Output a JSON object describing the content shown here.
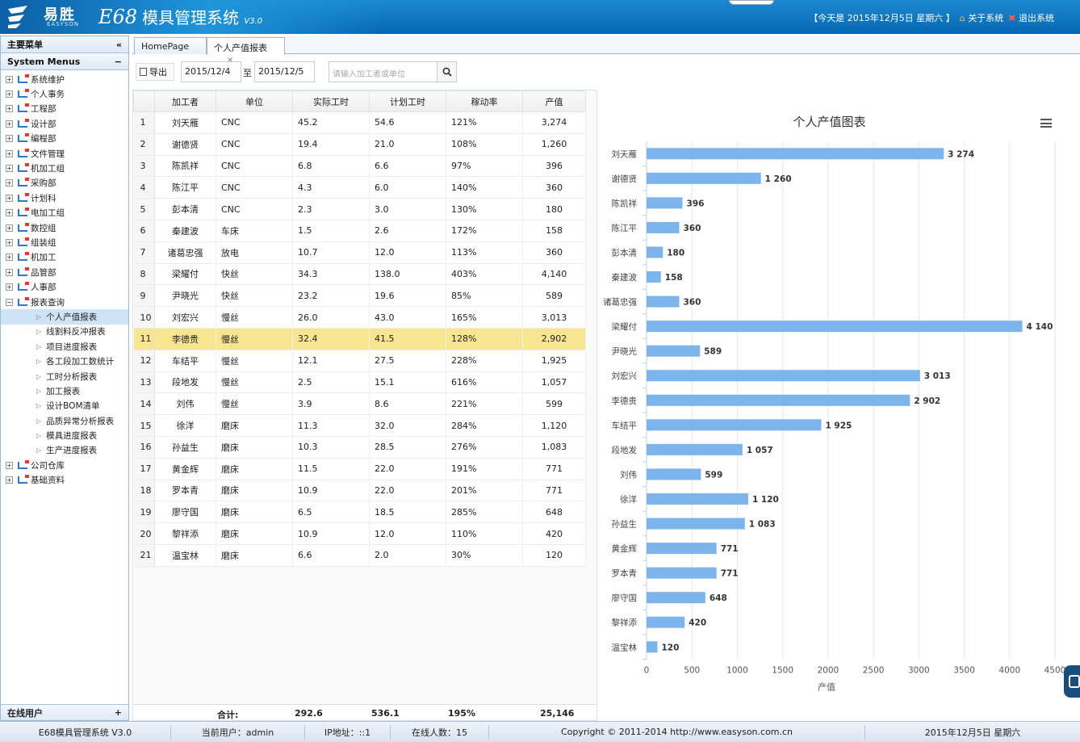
{
  "header": {
    "logo_name": "易胜",
    "logo_sub": "EASYSON",
    "app_code": "E68",
    "app_name": "模具管理系统",
    "app_version": "V3.0",
    "today": "【今天是 2015年12月5日 星期六 】",
    "about": "关于系统",
    "logout": "退出系统"
  },
  "sidebar": {
    "title": "主要菜单",
    "collapse": "«",
    "section": "System Menus",
    "section_toggle": "−",
    "items": [
      {
        "label": "系统维护"
      },
      {
        "label": "个人事务"
      },
      {
        "label": "工程部"
      },
      {
        "label": "设计部"
      },
      {
        "label": "编程部"
      },
      {
        "label": "文件管理"
      },
      {
        "label": "机加工组"
      },
      {
        "label": "采购部"
      },
      {
        "label": "计划科"
      },
      {
        "label": "电加工组"
      },
      {
        "label": "数控组"
      },
      {
        "label": "组装组"
      },
      {
        "label": "机加工"
      },
      {
        "label": "品管部"
      },
      {
        "label": "人事部"
      },
      {
        "label": "报表查询"
      }
    ],
    "report_children": [
      {
        "label": "个人产值报表"
      },
      {
        "label": "线割料反冲报表"
      },
      {
        "label": "项目进度报表"
      },
      {
        "label": "各工段加工数统计"
      },
      {
        "label": "工时分析报表"
      },
      {
        "label": "加工报表"
      },
      {
        "label": "设计BOM清单"
      },
      {
        "label": "品质异常分析报表"
      },
      {
        "label": "模具进度报表"
      },
      {
        "label": "生产进度报表"
      }
    ],
    "tail_items": [
      {
        "label": "公司仓库"
      },
      {
        "label": "基础资料"
      }
    ],
    "online_title": "在线用户",
    "online_toggle": "+"
  },
  "tabs": [
    {
      "label": "HomePage"
    },
    {
      "label": "个人产值报表",
      "close": "×"
    }
  ],
  "toolbar": {
    "export": "导出",
    "date_from": "2015/12/4",
    "to": "至",
    "date_to": "2015/12/5",
    "search_placeholder": "请输入加工者或单位"
  },
  "table": {
    "headers": [
      "加工者",
      "单位",
      "实际工时",
      "计划工时",
      "稼动率",
      "产值"
    ],
    "rows": [
      [
        "1",
        "刘天雁",
        "CNC",
        "45.2",
        "54.6",
        "121%",
        "3,274"
      ],
      [
        "2",
        "谢德贤",
        "CNC",
        "19.4",
        "21.0",
        "108%",
        "1,260"
      ],
      [
        "3",
        "陈凯祥",
        "CNC",
        "6.8",
        "6.6",
        "97%",
        "396"
      ],
      [
        "4",
        "陈江平",
        "CNC",
        "4.3",
        "6.0",
        "140%",
        "360"
      ],
      [
        "5",
        "彭本清",
        "CNC",
        "2.3",
        "3.0",
        "130%",
        "180"
      ],
      [
        "6",
        "秦建波",
        "车床",
        "1.5",
        "2.6",
        "172%",
        "158"
      ],
      [
        "7",
        "诸葛忠强",
        "放电",
        "10.7",
        "12.0",
        "113%",
        "360"
      ],
      [
        "8",
        "梁耀付",
        "快丝",
        "34.3",
        "138.0",
        "403%",
        "4,140"
      ],
      [
        "9",
        "尹晓光",
        "快丝",
        "23.2",
        "19.6",
        "85%",
        "589"
      ],
      [
        "10",
        "刘宏兴",
        "慢丝",
        "26.0",
        "43.0",
        "165%",
        "3,013"
      ],
      [
        "11",
        "李德贵",
        "慢丝",
        "32.4",
        "41.5",
        "128%",
        "2,902"
      ],
      [
        "12",
        "车结平",
        "慢丝",
        "12.1",
        "27.5",
        "228%",
        "1,925"
      ],
      [
        "13",
        "段地发",
        "慢丝",
        "2.5",
        "15.1",
        "616%",
        "1,057"
      ],
      [
        "14",
        "刘伟",
        "慢丝",
        "3.9",
        "8.6",
        "221%",
        "599"
      ],
      [
        "15",
        "徐洋",
        "磨床",
        "11.3",
        "32.0",
        "284%",
        "1,120"
      ],
      [
        "16",
        "孙益生",
        "磨床",
        "10.3",
        "28.5",
        "276%",
        "1,083"
      ],
      [
        "17",
        "黄金辉",
        "磨床",
        "11.5",
        "22.0",
        "191%",
        "771"
      ],
      [
        "18",
        "罗本青",
        "磨床",
        "10.9",
        "22.0",
        "201%",
        "771"
      ],
      [
        "19",
        "廖守国",
        "磨床",
        "6.5",
        "18.5",
        "285%",
        "648"
      ],
      [
        "20",
        "黎祥添",
        "磨床",
        "10.9",
        "12.0",
        "110%",
        "420"
      ],
      [
        "21",
        "温宝林",
        "磨床",
        "6.6",
        "2.0",
        "30%",
        "120"
      ]
    ],
    "highlight_row": 11,
    "totals": {
      "label": "合计:",
      "actual": "292.6",
      "planned": "536.1",
      "rate": "195%",
      "output": "25,146"
    }
  },
  "chart_data": {
    "type": "bar",
    "orientation": "horizontal",
    "title": "个人产值图表",
    "xlabel": "产值",
    "ylabel": "",
    "xlim": [
      0,
      4500
    ],
    "x_ticks": [
      0,
      500,
      1000,
      1500,
      2000,
      2500,
      3000,
      3500,
      4000,
      4500
    ],
    "categories": [
      "刘天雁",
      "谢德贤",
      "陈凯祥",
      "陈江平",
      "彭本清",
      "秦建波",
      "诸葛忠强",
      "梁耀付",
      "尹晓光",
      "刘宏兴",
      "李德贵",
      "车结平",
      "段地发",
      "刘伟",
      "徐洋",
      "孙益生",
      "黄金辉",
      "罗本青",
      "廖守国",
      "黎祥添",
      "温宝林"
    ],
    "values": [
      3274,
      1260,
      396,
      360,
      180,
      158,
      360,
      4140,
      589,
      3013,
      2902,
      1925,
      1057,
      599,
      1120,
      1083,
      771,
      771,
      648,
      420,
      120
    ],
    "data_labels": [
      "3 274",
      "1 260",
      "396",
      "360",
      "180",
      "158",
      "360",
      "4 140",
      "589",
      "3 013",
      "2 902",
      "1 925",
      "1 057",
      "599",
      "1 120",
      "1 083",
      "771",
      "771",
      "648",
      "420",
      "120"
    ],
    "bar_color": "#7cb5ec",
    "grid": "vertical"
  },
  "statusbar": {
    "app": "E68模具管理系统 V3.0",
    "user": "当前用户：admin",
    "ip": "IP地址：::1",
    "online": "在线人数：15",
    "copyright": "Copyright © 2011-2014    http://www.easyson.com.cn",
    "date": "2015年12月5日 星期六"
  },
  "colors": {
    "header": "#0b6fbf",
    "highlight": "#f8e58f",
    "bar": "#7cb5ec"
  }
}
